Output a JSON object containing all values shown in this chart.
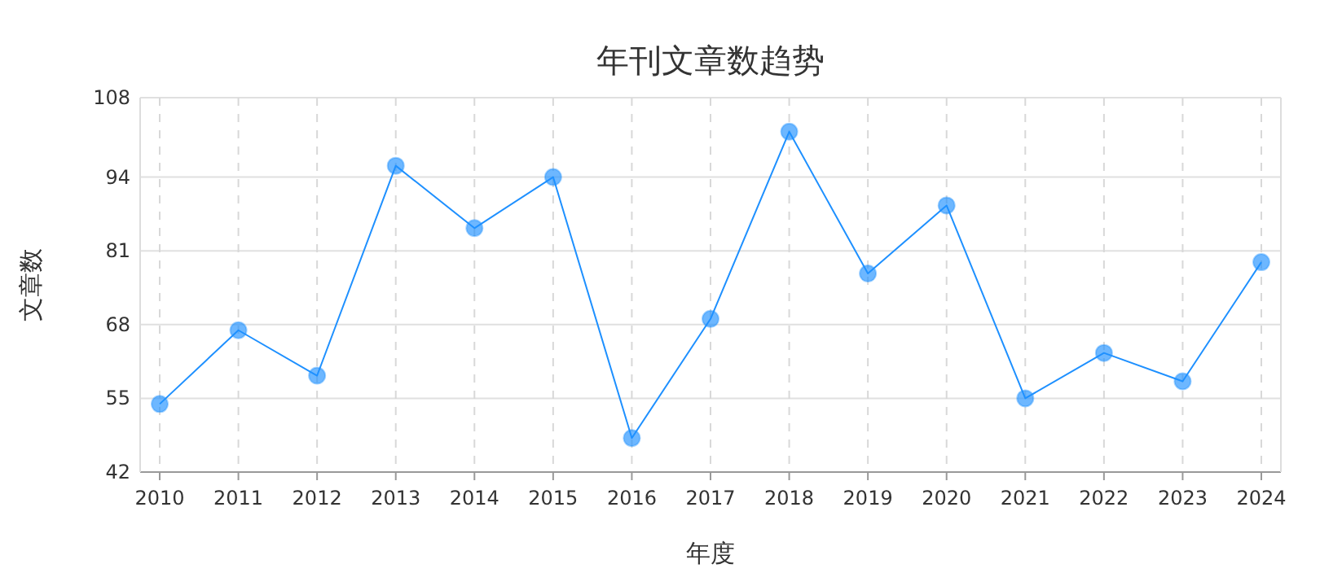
{
  "chart_data": {
    "type": "line",
    "title": "年刊文章数趋势",
    "xlabel": "年度",
    "ylabel": "文章数",
    "categories": [
      "2010",
      "2011",
      "2012",
      "2013",
      "2014",
      "2015",
      "2016",
      "2017",
      "2018",
      "2019",
      "2020",
      "2021",
      "2022",
      "2023",
      "2024"
    ],
    "series": [
      {
        "color": "#1e90ff",
        "values": [
          54,
          67,
          59,
          96,
          85,
          94,
          48,
          69,
          102,
          77,
          89,
          55,
          63,
          58,
          79
        ]
      }
    ],
    "ylim": [
      42,
      108
    ],
    "yticks": [
      42,
      55,
      68,
      81,
      94,
      108
    ],
    "grid": true,
    "marker": "circle",
    "line_style": "solid"
  }
}
